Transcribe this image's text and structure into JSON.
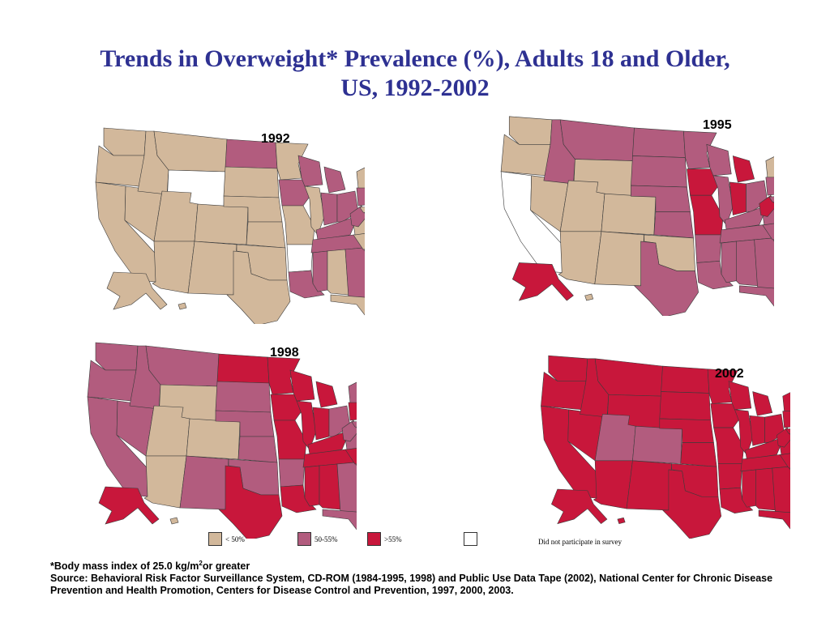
{
  "title_line1": "Trends in Overweight* Prevalence (%), Adults 18 and Older,",
  "title_line2": "US, 1992-2002",
  "colors": {
    "lt50": "#d2b89b",
    "50to55": "#b25c7e",
    "gt55": "#c8173b",
    "none": "#ffffff",
    "title": "#2e3192"
  },
  "maps": [
    {
      "year": "1992",
      "dominant": "lt50"
    },
    {
      "year": "1995",
      "dominant": "50to55"
    },
    {
      "year": "1998",
      "dominant": "mixed"
    },
    {
      "year": "2002",
      "dominant": "gt55"
    }
  ],
  "legend": [
    {
      "key": "lt50",
      "label": "< 50%"
    },
    {
      "key": "50to55",
      "label": "50-55%"
    },
    {
      "key": "gt55",
      "label": ">55%"
    },
    {
      "key": "none",
      "label": "Did not participate in survey"
    }
  ],
  "footnote": {
    "bmi_prefix": "*Body mass index of 25.0 kg/m",
    "bmi_sup": "2",
    "bmi_suffix": "or greater",
    "source": "Source: Behavioral Risk Factor Surveillance System, CD-ROM (1984-1995, 1998) and Public Use Data Tape (2002), National Center for Chronic Disease Prevention and Health Promotion, Centers for Disease Control and Prevention, 1997, 2000, 2003."
  }
}
